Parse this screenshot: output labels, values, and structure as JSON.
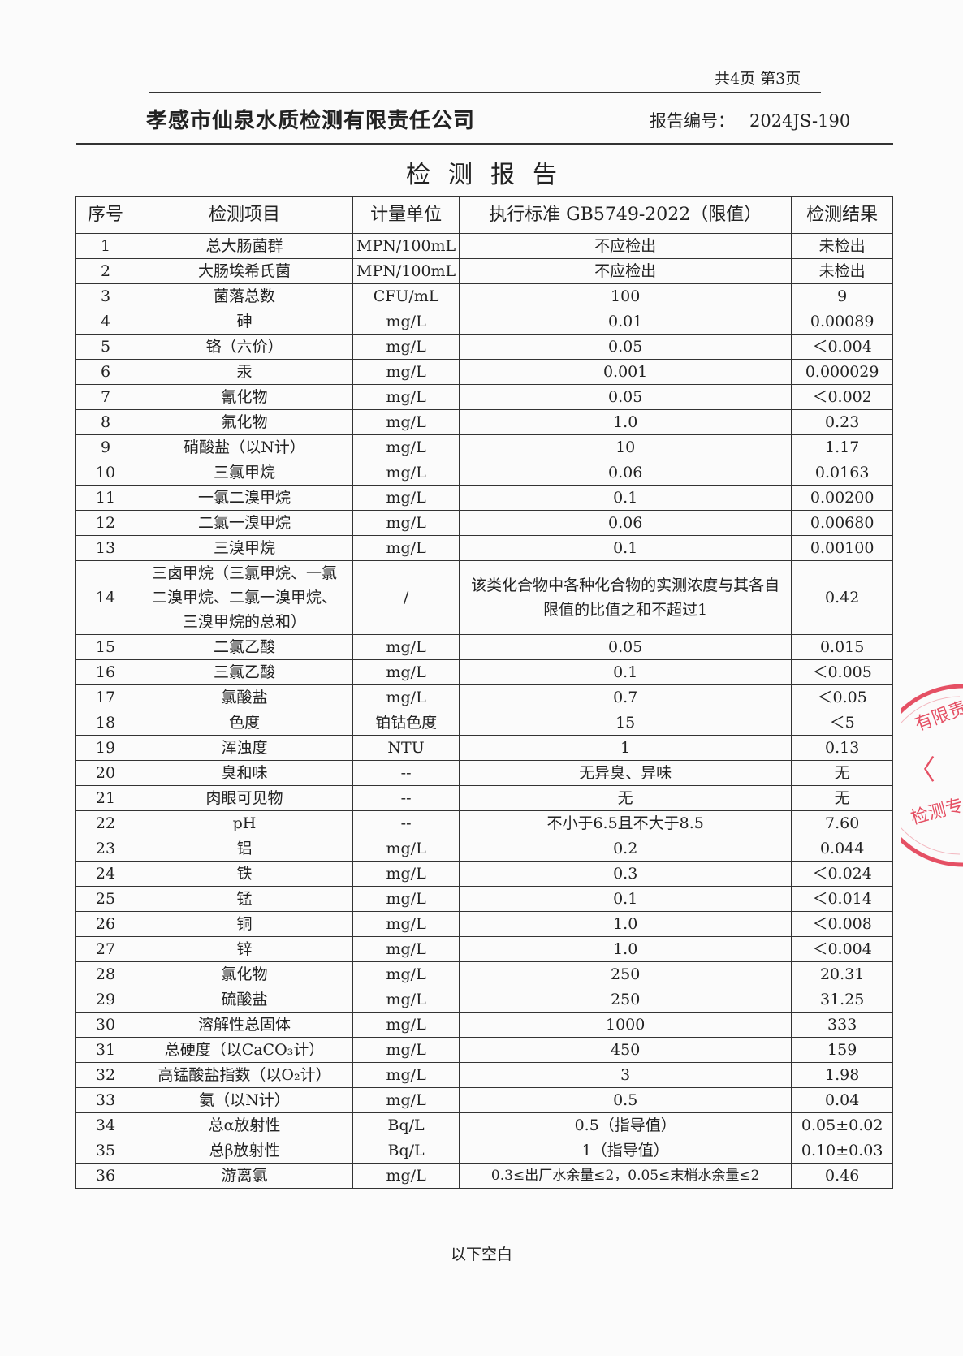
{
  "page_indicator": "共4页 第3页",
  "company": "孝感市仙泉水质检测有限责任公司",
  "report_no_label": "报告编号：",
  "report_no": "2024JS-190",
  "title": "检测报告",
  "columns": [
    "序号",
    "检测项目",
    "计量单位",
    "执行标准 GB5749-2022（限值）",
    "检测结果"
  ],
  "rows": [
    [
      "1",
      "总大肠菌群",
      "MPN/100mL",
      "不应检出",
      "未检出"
    ],
    [
      "2",
      "大肠埃希氏菌",
      "MPN/100mL",
      "不应检出",
      "未检出"
    ],
    [
      "3",
      "菌落总数",
      "CFU/mL",
      "100",
      "9"
    ],
    [
      "4",
      "砷",
      "mg/L",
      "0.01",
      "0.00089"
    ],
    [
      "5",
      "铬（六价）",
      "mg/L",
      "0.05",
      "＜0.004"
    ],
    [
      "6",
      "汞",
      "mg/L",
      "0.001",
      "0.000029"
    ],
    [
      "7",
      "氰化物",
      "mg/L",
      "0.05",
      "＜0.002"
    ],
    [
      "8",
      "氟化物",
      "mg/L",
      "1.0",
      "0.23"
    ],
    [
      "9",
      "硝酸盐（以N计）",
      "mg/L",
      "10",
      "1.17"
    ],
    [
      "10",
      "三氯甲烷",
      "mg/L",
      "0.06",
      "0.0163"
    ],
    [
      "11",
      "一氯二溴甲烷",
      "mg/L",
      "0.1",
      "0.00200"
    ],
    [
      "12",
      "二氯一溴甲烷",
      "mg/L",
      "0.06",
      "0.00680"
    ],
    [
      "13",
      "三溴甲烷",
      "mg/L",
      "0.1",
      "0.00100"
    ],
    [
      "14",
      "三卤甲烷（三氯甲烷、一氯二溴甲烷、二氯一溴甲烷、三溴甲烷的总和）",
      "/",
      "该类化合物中各种化合物的实测浓度与其各自限值的比值之和不超过1",
      "0.42"
    ],
    [
      "15",
      "二氯乙酸",
      "mg/L",
      "0.05",
      "0.015"
    ],
    [
      "16",
      "三氯乙酸",
      "mg/L",
      "0.1",
      "＜0.005"
    ],
    [
      "17",
      "氯酸盐",
      "mg/L",
      "0.7",
      "＜0.05"
    ],
    [
      "18",
      "色度",
      "铂钴色度",
      "15",
      "＜5"
    ],
    [
      "19",
      "浑浊度",
      "NTU",
      "1",
      "0.13"
    ],
    [
      "20",
      "臭和味",
      "--",
      "无异臭、异味",
      "无"
    ],
    [
      "21",
      "肉眼可见物",
      "--",
      "无",
      "无"
    ],
    [
      "22",
      "pH",
      "--",
      "不小于6.5且不大于8.5",
      "7.60"
    ],
    [
      "23",
      "铝",
      "mg/L",
      "0.2",
      "0.044"
    ],
    [
      "24",
      "铁",
      "mg/L",
      "0.3",
      "＜0.024"
    ],
    [
      "25",
      "锰",
      "mg/L",
      "0.1",
      "＜0.014"
    ],
    [
      "26",
      "铜",
      "mg/L",
      "1.0",
      "＜0.008"
    ],
    [
      "27",
      "锌",
      "mg/L",
      "1.0",
      "＜0.004"
    ],
    [
      "28",
      "氯化物",
      "mg/L",
      "250",
      "20.31"
    ],
    [
      "29",
      "硫酸盐",
      "mg/L",
      "250",
      "31.25"
    ],
    [
      "30",
      "溶解性总固体",
      "mg/L",
      "1000",
      "333"
    ],
    [
      "31",
      "总硬度（以CaCO₃计）",
      "mg/L",
      "450",
      "159"
    ],
    [
      "32",
      "高锰酸盐指数（以O₂计）",
      "mg/L",
      "3",
      "1.98"
    ],
    [
      "33",
      "氨（以N计）",
      "mg/L",
      "0.5",
      "0.04"
    ],
    [
      "34",
      "总α放射性",
      "Bq/L",
      "0.5（指导值）",
      "0.05±0.02"
    ],
    [
      "35",
      "总β放射性",
      "Bq/L",
      "1（指导值）",
      "0.10±0.03"
    ],
    [
      "36",
      "游离氯",
      "mg/L",
      "0.3≤出厂水余量≤2，0.05≤末梢水余量≤2",
      "0.46"
    ]
  ],
  "footer_note": "以下空白",
  "stamp_color": "#e0263f"
}
